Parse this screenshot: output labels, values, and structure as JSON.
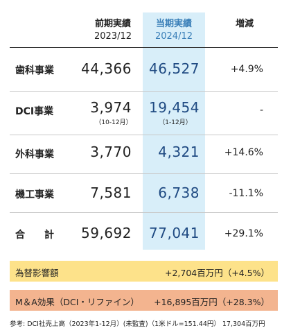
{
  "header": {
    "prev": {
      "title": "前期実績",
      "date": "2023/12"
    },
    "cur": {
      "title": "当期実績",
      "date": "2024/12"
    },
    "change": {
      "title": "増減"
    }
  },
  "rows": [
    {
      "segment": "歯科事業",
      "prev": "44,366",
      "cur": "46,527",
      "change": "+4.9%"
    },
    {
      "segment": "DCI事業",
      "prev": "3,974",
      "prev_note": "（10-12月）",
      "cur": "19,454",
      "cur_note": "（1-12月）",
      "change": "-"
    },
    {
      "segment": "外科事業",
      "prev": "3,770",
      "cur": "4,321",
      "change": "+14.6%"
    },
    {
      "segment": "機工事業",
      "prev": "7,581",
      "cur": "6,738",
      "change": "-11.1%"
    },
    {
      "segment": "合　　計",
      "prev": "59,692",
      "cur": "77,041",
      "change": "+29.1%"
    }
  ],
  "fx_box": {
    "label": "為替影響額",
    "value": "+2,704百万円（+4.5%）",
    "color": "#fde28a"
  },
  "ma_box": {
    "label": "M＆A効果（DCI・リファイン）",
    "value": "+16,895百万円（+28.3%）",
    "color": "#f3b48f"
  },
  "note": {
    "text": "参考: DCI社売上高（2023年1-12月）(未監査)（1米ドル=151.44円） 17,304百万円"
  },
  "colors": {
    "highlight": "#d8eef9",
    "current_value": "#1f4a82",
    "current_header": "#3a7fb8"
  }
}
